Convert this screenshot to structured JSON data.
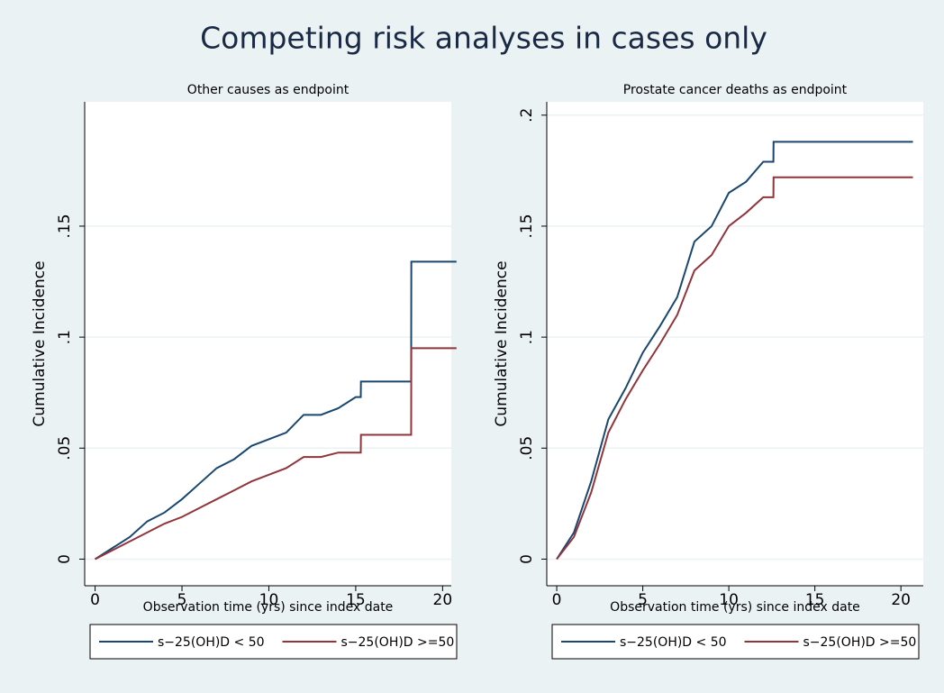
{
  "title": "Competing risk analyses in cases only",
  "chart_data": [
    {
      "type": "line",
      "title": "Other causes as endpoint",
      "x_label": "Observation time (yrs) since index date",
      "y_label": "Cumulative Incidence",
      "x": [
        0,
        1,
        2,
        3,
        4,
        5,
        6,
        7,
        8,
        9,
        10,
        11,
        12,
        13,
        14,
        15,
        15.29,
        15.3,
        18.19,
        18.2,
        20.8
      ],
      "series": [
        {
          "name": "s−25(OH)D < 50",
          "color": "#1a476f",
          "values": [
            0,
            0.005,
            0.01,
            0.017,
            0.021,
            0.027,
            0.034,
            0.041,
            0.045,
            0.051,
            0.054,
            0.057,
            0.065,
            0.065,
            0.068,
            0.073,
            0.073,
            0.08,
            0.08,
            0.134,
            0.134
          ]
        },
        {
          "name": "s−25(OH)D >=50",
          "color": "#90353b",
          "values": [
            0,
            0.004,
            0.008,
            0.012,
            0.016,
            0.019,
            0.023,
            0.027,
            0.031,
            0.035,
            0.038,
            0.041,
            0.046,
            0.046,
            0.048,
            0.048,
            0.048,
            0.056,
            0.056,
            0.095,
            0.095
          ]
        }
      ],
      "xlim": [
        -0.6,
        20.5
      ],
      "xticks": [
        0,
        5,
        10,
        15,
        20
      ],
      "ylim": [
        -0.012,
        0.206
      ],
      "yticks": [
        0,
        {
          "value": 0.05,
          "label": ".05"
        },
        {
          "value": 0.1,
          "label": ".1"
        },
        {
          "value": 0.15,
          "label": ".15"
        }
      ],
      "grid": true,
      "legend": "bottom"
    },
    {
      "type": "line",
      "title": "Prostate cancer deaths as endpoint",
      "x_label": "Observation time (yrs) since index date",
      "y_label": "Cumulative Incidence",
      "x": [
        0,
        1,
        2,
        3,
        4,
        5,
        6,
        7,
        8,
        9,
        10,
        11,
        12,
        12.59,
        12.6,
        20.7
      ],
      "series": [
        {
          "name": "s−25(OH)D < 50",
          "color": "#1a476f",
          "values": [
            0,
            0.012,
            0.035,
            0.063,
            0.077,
            0.093,
            0.105,
            0.118,
            0.143,
            0.15,
            0.165,
            0.17,
            0.179,
            0.179,
            0.188,
            0.188
          ]
        },
        {
          "name": "s−25(OH)D >=50",
          "color": "#90353b",
          "values": [
            0,
            0.01,
            0.03,
            0.057,
            0.072,
            0.085,
            0.097,
            0.11,
            0.13,
            0.137,
            0.15,
            0.156,
            0.163,
            0.163,
            0.172,
            0.172
          ]
        }
      ],
      "xlim": [
        -0.58,
        21.3
      ],
      "xticks": [
        0,
        5,
        10,
        15,
        20
      ],
      "ylim": [
        -0.012,
        0.206
      ],
      "yticks": [
        0,
        {
          "value": 0.05,
          "label": ".05"
        },
        {
          "value": 0.1,
          "label": ".1"
        },
        {
          "value": 0.15,
          "label": ".15"
        },
        {
          "value": 0.2,
          "label": ".2"
        }
      ],
      "grid": true,
      "legend": "bottom"
    }
  ]
}
